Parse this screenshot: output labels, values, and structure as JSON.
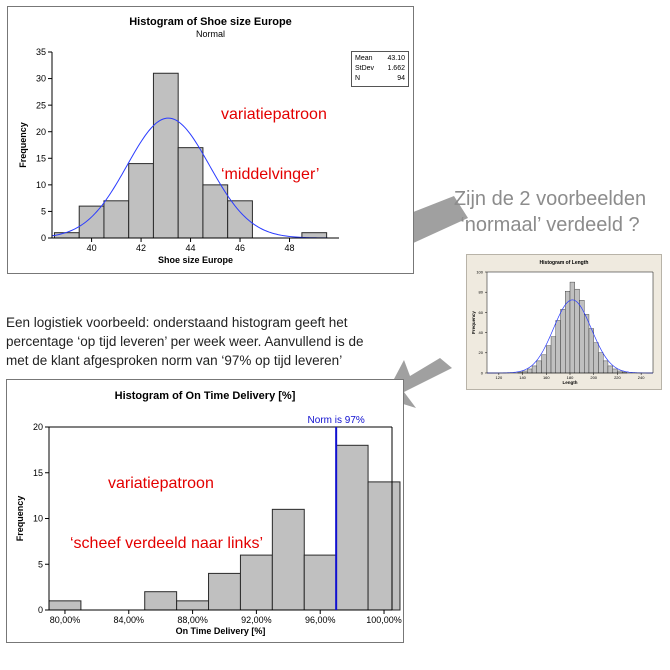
{
  "colors": {
    "bar_fill": "#c0c0c0",
    "bar_stroke": "#2a2a2a",
    "curve": "#2b3cff",
    "norm_line": "#1010d0",
    "annotation_red": "#e30000",
    "question_gray": "#8c8c8c",
    "arrow_gray": "#a0a0a0"
  },
  "question_text": {
    "line1": "Zijn de 2 voorbeelden",
    "line2": "‘normaal’ verdeeld ?"
  },
  "paragraph": {
    "line1": "Een logistiek voorbeeld: onderstaand histogram geeft het",
    "line2": "percentage ‘op tijd leveren’ per week weer. Aanvullend is de",
    "line3": "met de klant afgesproken norm van ‘97% op tijd leveren’"
  },
  "chart_data": [
    {
      "type": "bar",
      "title": "Histogram of Shoe size Europe",
      "subtitle": "Normal",
      "xlabel": "Shoe size Europe",
      "ylabel": "Frequency",
      "xlim": [
        38.4,
        50
      ],
      "ylim": [
        0,
        35
      ],
      "xticks": [
        40,
        42,
        44,
        46,
        48
      ],
      "yticks": [
        0,
        5,
        10,
        15,
        20,
        25,
        30,
        35
      ],
      "bin_width": 1,
      "bins": [
        {
          "x0": 38.5,
          "x1": 39.5,
          "count": 1
        },
        {
          "x0": 39.5,
          "x1": 40.5,
          "count": 6
        },
        {
          "x0": 40.5,
          "x1": 41.5,
          "count": 7
        },
        {
          "x0": 41.5,
          "x1": 42.5,
          "count": 14
        },
        {
          "x0": 42.5,
          "x1": 43.5,
          "count": 31
        },
        {
          "x0": 43.5,
          "x1": 44.5,
          "count": 17
        },
        {
          "x0": 44.5,
          "x1": 45.5,
          "count": 10
        },
        {
          "x0": 45.5,
          "x1": 46.5,
          "count": 7
        },
        {
          "x0": 48.5,
          "x1": 49.5,
          "count": 1
        }
      ],
      "fit": {
        "mean": 43.1,
        "stdev": 1.662,
        "n": 94
      },
      "stats_legend": [
        {
          "label": "Mean",
          "value": "43.10"
        },
        {
          "label": "StDev",
          "value": "1.662"
        },
        {
          "label": "N",
          "value": "94"
        }
      ],
      "annotation": {
        "line1": "variatiepatroon",
        "line2": "‘middelvinger’"
      },
      "grid": false,
      "legend_position": "top-right"
    },
    {
      "type": "bar",
      "title": "Histogram of Length",
      "xlabel": "Length",
      "ylabel": "Frequency",
      "xlim": [
        110,
        250
      ],
      "ylim": [
        0,
        100
      ],
      "xticks": [
        120,
        140,
        160,
        180,
        200,
        220,
        240
      ],
      "yticks": [
        0,
        20,
        40,
        60,
        80,
        100
      ],
      "bin_width": 4,
      "bins": [
        {
          "x0": 136,
          "x1": 140,
          "count": 1
        },
        {
          "x0": 140,
          "x1": 144,
          "count": 2
        },
        {
          "x0": 144,
          "x1": 148,
          "count": 4
        },
        {
          "x0": 148,
          "x1": 152,
          "count": 7
        },
        {
          "x0": 152,
          "x1": 156,
          "count": 12
        },
        {
          "x0": 156,
          "x1": 160,
          "count": 18
        },
        {
          "x0": 160,
          "x1": 164,
          "count": 27
        },
        {
          "x0": 164,
          "x1": 168,
          "count": 36
        },
        {
          "x0": 168,
          "x1": 172,
          "count": 52
        },
        {
          "x0": 172,
          "x1": 176,
          "count": 63
        },
        {
          "x0": 176,
          "x1": 180,
          "count": 81
        },
        {
          "x0": 180,
          "x1": 184,
          "count": 90
        },
        {
          "x0": 184,
          "x1": 188,
          "count": 83
        },
        {
          "x0": 188,
          "x1": 192,
          "count": 72
        },
        {
          "x0": 192,
          "x1": 196,
          "count": 58
        },
        {
          "x0": 196,
          "x1": 200,
          "count": 44
        },
        {
          "x0": 200,
          "x1": 204,
          "count": 30
        },
        {
          "x0": 204,
          "x1": 208,
          "count": 20
        },
        {
          "x0": 208,
          "x1": 212,
          "count": 12
        },
        {
          "x0": 212,
          "x1": 216,
          "count": 7
        },
        {
          "x0": 216,
          "x1": 220,
          "count": 4
        },
        {
          "x0": 220,
          "x1": 224,
          "count": 2
        },
        {
          "x0": 224,
          "x1": 228,
          "count": 1
        }
      ],
      "fit": {
        "mean": 182,
        "stdev": 16
      },
      "grid": false
    },
    {
      "type": "bar",
      "title": "Histogram of On Time Delivery [%]",
      "xlabel": "On Time Delivery [%]",
      "ylabel": "Frequency",
      "xlim": [
        0.79,
        1.005
      ],
      "ylim": [
        0,
        20
      ],
      "xticks": [
        0.8,
        0.84,
        0.88,
        0.92,
        0.96,
        1.0
      ],
      "xtick_labels": [
        "80,00%",
        "84,00%",
        "88,00%",
        "92,00%",
        "96,00%",
        "100,00%"
      ],
      "yticks": [
        0,
        5,
        10,
        15,
        20
      ],
      "bin_width": 0.02,
      "bins": [
        {
          "x0": 0.79,
          "x1": 0.81,
          "count": 1
        },
        {
          "x0": 0.81,
          "x1": 0.83,
          "count": 0
        },
        {
          "x0": 0.83,
          "x1": 0.85,
          "count": 0
        },
        {
          "x0": 0.85,
          "x1": 0.87,
          "count": 2
        },
        {
          "x0": 0.87,
          "x1": 0.89,
          "count": 1
        },
        {
          "x0": 0.89,
          "x1": 0.91,
          "count": 4
        },
        {
          "x0": 0.91,
          "x1": 0.93,
          "count": 6
        },
        {
          "x0": 0.93,
          "x1": 0.95,
          "count": 11
        },
        {
          "x0": 0.95,
          "x1": 0.97,
          "count": 6
        },
        {
          "x0": 0.97,
          "x1": 0.99,
          "count": 18
        },
        {
          "x0": 0.99,
          "x1": 1.01,
          "count": 14
        }
      ],
      "reference_line": {
        "x": 0.97,
        "label": "Norm is 97%"
      },
      "annotation": {
        "line1": "variatiepatroon",
        "line2": "‘scheef verdeeld naar links’"
      },
      "grid": false
    }
  ]
}
